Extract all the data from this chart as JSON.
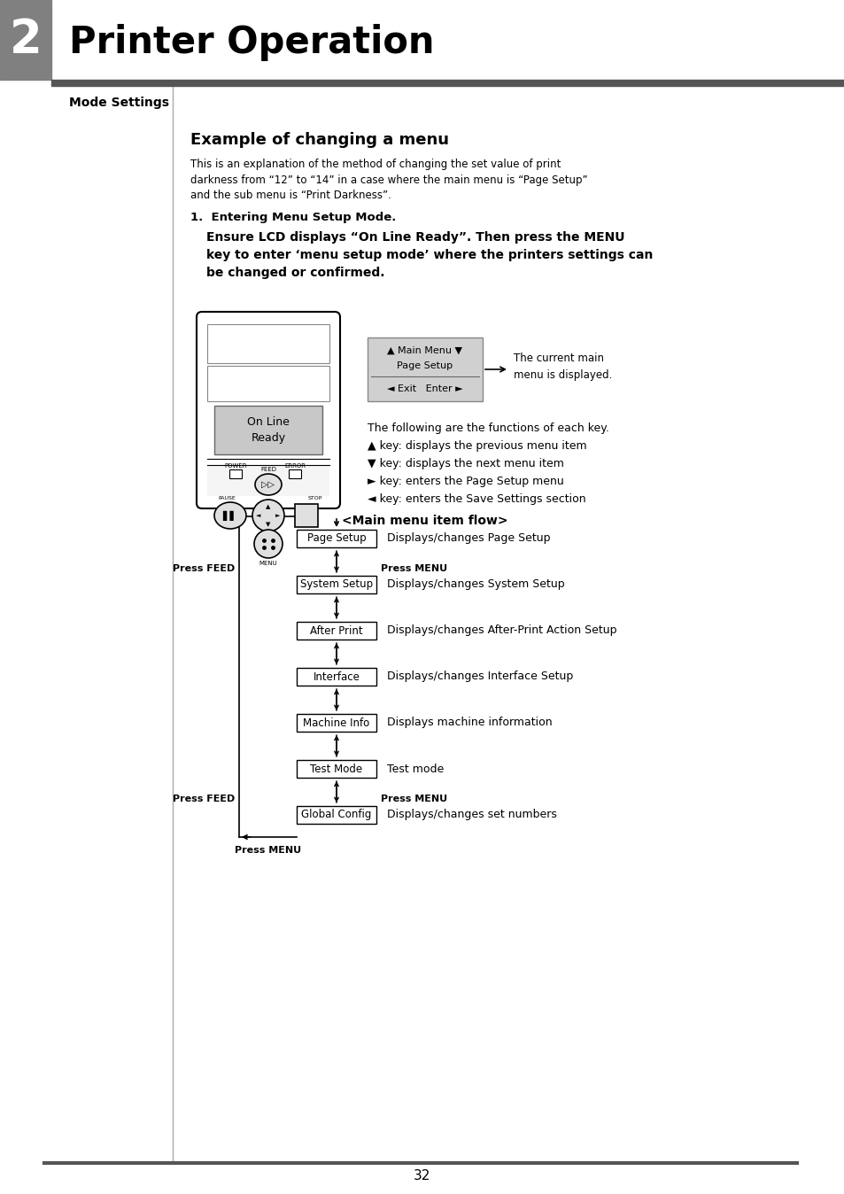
{
  "page_title": "Printer Operation",
  "chapter_num": "2",
  "section_title": "Mode Settings",
  "content_title": "Example of changing a menu",
  "body_line1": "This is an explanation of the method of changing the set value of print",
  "body_line2": "darkness from “12” to “14” in a case where the main menu is “Page Setup”",
  "body_line3": "and the sub menu is “Print Darkness”.",
  "step1_label": "1.  Entering Menu Setup Mode.",
  "step1_body_lines": [
    "Ensure LCD displays “On Line Ready”. Then press the MENU",
    "key to enter ‘menu setup mode’ where the printers settings can",
    "be changed or confirmed."
  ],
  "lcd_text": [
    "On Line",
    "Ready"
  ],
  "lcd_box_label": [
    "▲ Main Menu ▼",
    "Page Setup",
    "◄ Exit   Enter ►"
  ],
  "lcd_annotation": "The current main\nmenu is displayed.",
  "key_functions_title": "The following are the functions of each key.",
  "key_functions": [
    "▲ key: displays the previous menu item",
    "▼ key: displays the next menu item",
    "► key: enters the Page Setup menu",
    "◄ key: enters the Save Settings section"
  ],
  "flow_title": "<Main menu item flow>",
  "flow_items": [
    {
      "label": "Page Setup",
      "desc": "Displays/changes Page Setup"
    },
    {
      "label": "System Setup",
      "desc": "Displays/changes System Setup"
    },
    {
      "label": "After Print",
      "desc": "Displays/changes After-Print Action Setup"
    },
    {
      "label": "Interface",
      "desc": "Displays/changes Interface Setup"
    },
    {
      "label": "Machine Info",
      "desc": "Displays machine information"
    },
    {
      "label": "Test Mode",
      "desc": "Test mode"
    },
    {
      "label": "Global Config",
      "desc": "Displays/changes set numbers"
    }
  ],
  "page_number": "32",
  "header_gray": "#808080",
  "header_dark": "#555555",
  "background": "#ffffff"
}
